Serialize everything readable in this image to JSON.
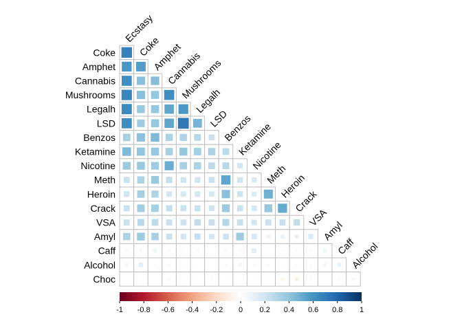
{
  "chart_data": {
    "type": "heatmap",
    "subtype": "correlation-lower-triangle",
    "variables": [
      "Ecstasy",
      "Coke",
      "Amphet",
      "Cannabis",
      "Mushrooms",
      "Legalh",
      "LSD",
      "Benzos",
      "Ketamine",
      "Nicotine",
      "Meth",
      "Heroin",
      "Crack",
      "VSA",
      "Amyl",
      "Caff",
      "Alcohol",
      "Choc"
    ],
    "row_labels": [
      "Coke",
      "Amphet",
      "Cannabis",
      "Mushrooms",
      "Legalh",
      "LSD",
      "Benzos",
      "Ketamine",
      "Nicotine",
      "Meth",
      "Heroin",
      "Crack",
      "VSA",
      "Amyl",
      "Caff",
      "Alcohol",
      "Choc"
    ],
    "column_labels": [
      "Ecstasy",
      "Coke",
      "Amphet",
      "Cannabis",
      "Mushrooms",
      "Legalh",
      "LSD",
      "Benzos",
      "Ketamine",
      "Nicotine",
      "Meth",
      "Heroin",
      "Crack",
      "VSA",
      "Amyl",
      "Caff",
      "Alcohol"
    ],
    "matrix": [
      [
        0.68
      ],
      [
        0.59,
        0.56
      ],
      [
        0.62,
        0.42,
        0.43
      ],
      [
        0.66,
        0.42,
        0.39,
        0.62
      ],
      [
        0.64,
        0.38,
        0.39,
        0.53,
        0.58
      ],
      [
        0.63,
        0.36,
        0.39,
        0.53,
        0.72,
        0.47
      ],
      [
        0.34,
        0.42,
        0.45,
        0.32,
        0.31,
        0.28,
        0.22
      ],
      [
        0.45,
        0.4,
        0.38,
        0.33,
        0.39,
        0.34,
        0.32,
        0.27
      ],
      [
        0.37,
        0.38,
        0.36,
        0.5,
        0.33,
        0.32,
        0.27,
        0.28,
        0.19
      ],
      [
        0.22,
        0.32,
        0.37,
        0.24,
        0.2,
        0.2,
        0.22,
        0.53,
        0.2,
        0.16
      ],
      [
        0.2,
        0.34,
        0.31,
        0.19,
        0.18,
        0.19,
        0.17,
        0.42,
        0.21,
        0.15,
        0.49
      ],
      [
        0.22,
        0.35,
        0.34,
        0.24,
        0.22,
        0.22,
        0.2,
        0.37,
        0.22,
        0.18,
        0.38,
        0.51
      ],
      [
        0.22,
        0.28,
        0.27,
        0.22,
        0.21,
        0.25,
        0.23,
        0.29,
        0.23,
        0.19,
        0.22,
        0.23,
        0.25
      ],
      [
        0.32,
        0.37,
        0.33,
        0.22,
        0.19,
        0.23,
        0.18,
        0.21,
        0.36,
        0.18,
        0.08,
        0.1,
        0.1,
        0.16
      ],
      [
        0.04,
        0.05,
        0.08,
        0.05,
        0.04,
        0.04,
        0.01,
        0.05,
        0.04,
        0.14,
        0.02,
        0.03,
        0.03,
        0.03,
        0.08
      ],
      [
        0.06,
        0.12,
        0.02,
        0.04,
        0.02,
        0.02,
        0.01,
        0.03,
        0.07,
        0.05,
        0.04,
        0.02,
        0.03,
        0.02,
        0.06,
        0.1
      ],
      [
        0.02,
        0.01,
        -0.01,
        -0.04,
        -0.01,
        -0.02,
        -0.02,
        0.02,
        -0.01,
        -0.02,
        -0.02,
        -0.07,
        -0.09,
        -0.02,
        -0.01,
        0.04,
        0.06
      ]
    ],
    "colorbar": {
      "ticks": [
        "-1",
        "-0.8",
        "-0.6",
        "-0.4",
        "-0.2",
        "0",
        "0.2",
        "0.4",
        "0.6",
        "0.8",
        "1"
      ],
      "range": [
        -1,
        1
      ],
      "palette": [
        "#67001F",
        "#B2182B",
        "#D6604D",
        "#F4A582",
        "#FDDBC7",
        "#FFFFFF",
        "#D1E5F0",
        "#92C5DE",
        "#4393C3",
        "#2166AC",
        "#053061"
      ]
    },
    "grid": true,
    "cell_border_color": "#BEBEBE",
    "label_color": "#000000"
  }
}
